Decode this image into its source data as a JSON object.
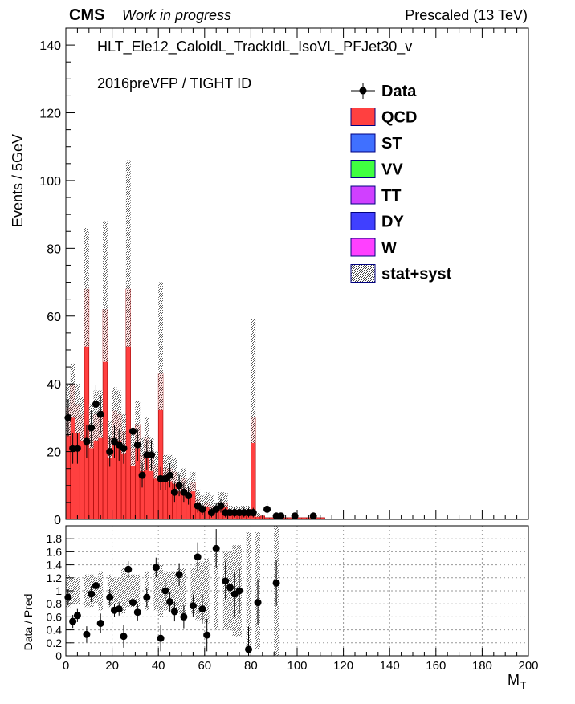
{
  "header": {
    "cms": "CMS",
    "wip": "Work in progress",
    "energy": "Prescaled (13 TeV)"
  },
  "labels": {
    "trigger": "HLT_Ele12_CaloIdL_TrackIdL_IsoVL_PFJet30_v",
    "era": "2016preVFP / TIGHT ID"
  },
  "colors": {
    "qcd": "#ff4040",
    "st": "#4070ff",
    "vv": "#40ff40",
    "tt": "#d040ff",
    "dy": "#4040ff",
    "w": "#ff40ff",
    "data": "#000000",
    "band": "#888888"
  },
  "chart_data": [
    {
      "type": "bar",
      "title": "",
      "xlabel": "",
      "ylabel": "Events / 5GeV",
      "xlim": [
        0,
        200
      ],
      "ylim": [
        0,
        145
      ],
      "xticks": [
        0,
        20,
        40,
        60,
        80,
        100,
        120,
        140,
        160,
        180,
        200
      ],
      "yticks": [
        0,
        20,
        40,
        60,
        80,
        100,
        120,
        140
      ],
      "bin_width": 2,
      "legend": [
        {
          "key": "data",
          "label": "Data"
        },
        {
          "key": "qcd",
          "label": "QCD"
        },
        {
          "key": "st",
          "label": "ST"
        },
        {
          "key": "vv",
          "label": "VV"
        },
        {
          "key": "tt",
          "label": "TT"
        },
        {
          "key": "dy",
          "label": "DY"
        },
        {
          "key": "w",
          "label": "W"
        },
        {
          "key": "band",
          "label": "stat+syst"
        }
      ],
      "mc_qcd": [
        {
          "x": 0,
          "v": 33
        },
        {
          "x": 2,
          "v": 40
        },
        {
          "x": 4,
          "v": 34
        },
        {
          "x": 6,
          "v": 31
        },
        {
          "x": 8,
          "v": 68
        },
        {
          "x": 10,
          "v": 28
        },
        {
          "x": 12,
          "v": 31
        },
        {
          "x": 14,
          "v": 32
        },
        {
          "x": 16,
          "v": 62
        },
        {
          "x": 18,
          "v": 24
        },
        {
          "x": 20,
          "v": 32
        },
        {
          "x": 22,
          "v": 31
        },
        {
          "x": 24,
          "v": 26
        },
        {
          "x": 26,
          "v": 68
        },
        {
          "x": 28,
          "v": 21
        },
        {
          "x": 30,
          "v": 28
        },
        {
          "x": 32,
          "v": 19
        },
        {
          "x": 34,
          "v": 24
        },
        {
          "x": 36,
          "v": 19
        },
        {
          "x": 38,
          "v": 16
        },
        {
          "x": 40,
          "v": 43
        },
        {
          "x": 42,
          "v": 15
        },
        {
          "x": 44,
          "v": 15
        },
        {
          "x": 46,
          "v": 14
        },
        {
          "x": 48,
          "v": 11
        },
        {
          "x": 50,
          "v": 12
        },
        {
          "x": 52,
          "v": 9
        },
        {
          "x": 54,
          "v": 11
        },
        {
          "x": 56,
          "v": 6
        },
        {
          "x": 58,
          "v": 4
        },
        {
          "x": 60,
          "v": 5
        },
        {
          "x": 62,
          "v": 4
        },
        {
          "x": 64,
          "v": 3
        },
        {
          "x": 66,
          "v": 5
        },
        {
          "x": 68,
          "v": 5
        },
        {
          "x": 70,
          "v": 2
        },
        {
          "x": 72,
          "v": 2
        },
        {
          "x": 74,
          "v": 2
        },
        {
          "x": 76,
          "v": 2
        },
        {
          "x": 78,
          "v": 2
        },
        {
          "x": 80,
          "v": 30
        },
        {
          "x": 82,
          "v": 1
        },
        {
          "x": 84,
          "v": 1
        },
        {
          "x": 86,
          "v": 0.5
        },
        {
          "x": 88,
          "v": 0.5
        },
        {
          "x": 90,
          "v": 0.5
        },
        {
          "x": 92,
          "v": 0.5
        },
        {
          "x": 94,
          "v": 0.5
        },
        {
          "x": 96,
          "v": 0.5
        },
        {
          "x": 98,
          "v": 0.5
        },
        {
          "x": 100,
          "v": 0.5
        },
        {
          "x": 102,
          "v": 0.5
        },
        {
          "x": 104,
          "v": 0.5
        },
        {
          "x": 106,
          "v": 0.5
        },
        {
          "x": 108,
          "v": 0.5
        },
        {
          "x": 110,
          "v": 0.5
        }
      ],
      "band_top": [
        {
          "x": 0,
          "v": 40
        },
        {
          "x": 2,
          "v": 46
        },
        {
          "x": 4,
          "v": 40
        },
        {
          "x": 6,
          "v": 36
        },
        {
          "x": 8,
          "v": 86
        },
        {
          "x": 10,
          "v": 34
        },
        {
          "x": 12,
          "v": 38
        },
        {
          "x": 14,
          "v": 38
        },
        {
          "x": 16,
          "v": 88
        },
        {
          "x": 18,
          "v": 29
        },
        {
          "x": 20,
          "v": 39
        },
        {
          "x": 22,
          "v": 38
        },
        {
          "x": 24,
          "v": 31
        },
        {
          "x": 26,
          "v": 106
        },
        {
          "x": 28,
          "v": 25
        },
        {
          "x": 30,
          "v": 35
        },
        {
          "x": 32,
          "v": 24
        },
        {
          "x": 34,
          "v": 30
        },
        {
          "x": 36,
          "v": 24
        },
        {
          "x": 38,
          "v": 20
        },
        {
          "x": 40,
          "v": 70
        },
        {
          "x": 42,
          "v": 19
        },
        {
          "x": 44,
          "v": 19
        },
        {
          "x": 46,
          "v": 18
        },
        {
          "x": 48,
          "v": 14
        },
        {
          "x": 50,
          "v": 15
        },
        {
          "x": 52,
          "v": 12
        },
        {
          "x": 54,
          "v": 14
        },
        {
          "x": 56,
          "v": 9
        },
        {
          "x": 58,
          "v": 7
        },
        {
          "x": 60,
          "v": 8
        },
        {
          "x": 62,
          "v": 7
        },
        {
          "x": 64,
          "v": 5
        },
        {
          "x": 66,
          "v": 8
        },
        {
          "x": 68,
          "v": 8
        },
        {
          "x": 70,
          "v": 4
        },
        {
          "x": 72,
          "v": 4
        },
        {
          "x": 74,
          "v": 4
        },
        {
          "x": 76,
          "v": 4
        },
        {
          "x": 78,
          "v": 4
        },
        {
          "x": 80,
          "v": 59
        },
        {
          "x": 82,
          "v": 2
        }
      ],
      "data_points": [
        {
          "x": 1,
          "y": 30
        },
        {
          "x": 3,
          "y": 21
        },
        {
          "x": 5,
          "y": 21
        },
        {
          "x": 9,
          "y": 23
        },
        {
          "x": 11,
          "y": 27
        },
        {
          "x": 13,
          "y": 34
        },
        {
          "x": 15,
          "y": 31
        },
        {
          "x": 19,
          "y": 20
        },
        {
          "x": 21,
          "y": 23
        },
        {
          "x": 23,
          "y": 22
        },
        {
          "x": 25,
          "y": 21
        },
        {
          "x": 29,
          "y": 26
        },
        {
          "x": 31,
          "y": 22
        },
        {
          "x": 33,
          "y": 13
        },
        {
          "x": 35,
          "y": 19
        },
        {
          "x": 37,
          "y": 19
        },
        {
          "x": 41,
          "y": 12
        },
        {
          "x": 43,
          "y": 12
        },
        {
          "x": 45,
          "y": 13
        },
        {
          "x": 47,
          "y": 8
        },
        {
          "x": 49,
          "y": 10
        },
        {
          "x": 51,
          "y": 8
        },
        {
          "x": 53,
          "y": 7
        },
        {
          "x": 57,
          "y": 4
        },
        {
          "x": 59,
          "y": 3
        },
        {
          "x": 63,
          "y": 2
        },
        {
          "x": 65,
          "y": 3
        },
        {
          "x": 67,
          "y": 4
        },
        {
          "x": 69,
          "y": 2
        },
        {
          "x": 71,
          "y": 2
        },
        {
          "x": 73,
          "y": 2
        },
        {
          "x": 75,
          "y": 2
        },
        {
          "x": 77,
          "y": 2
        },
        {
          "x": 79,
          "y": 2
        },
        {
          "x": 81,
          "y": 2
        },
        {
          "x": 87,
          "y": 3
        },
        {
          "x": 91,
          "y": 1
        },
        {
          "x": 93,
          "y": 1
        },
        {
          "x": 99,
          "y": 1
        },
        {
          "x": 107,
          "y": 1
        }
      ]
    },
    {
      "type": "scatter",
      "title": "",
      "xlabel": "M_T",
      "ylabel": "Data / Pred",
      "xlim": [
        0,
        200
      ],
      "ylim": [
        0,
        2
      ],
      "xticks": [
        0,
        20,
        40,
        60,
        80,
        100,
        120,
        140,
        160,
        180,
        200
      ],
      "yticks": [
        0,
        0.2,
        0.4,
        0.6,
        0.8,
        1,
        1.2,
        1.4,
        1.6,
        1.8
      ],
      "grid": true,
      "ratio_points": [
        {
          "x": 1,
          "y": 0.9,
          "band": 0.25
        },
        {
          "x": 3,
          "y": 0.53,
          "band": 0.2
        },
        {
          "x": 5,
          "y": 0.62,
          "band": 0.2
        },
        {
          "x": 9,
          "y": 0.33,
          "band": 0.25
        },
        {
          "x": 11,
          "y": 0.95,
          "band": 0.25
        },
        {
          "x": 13,
          "y": 1.08,
          "band": 0.2
        },
        {
          "x": 15,
          "y": 0.5,
          "band": 0.3
        },
        {
          "x": 19,
          "y": 0.9,
          "band": 0.25
        },
        {
          "x": 21,
          "y": 0.7,
          "band": 0.2
        },
        {
          "x": 23,
          "y": 0.72,
          "band": 0.2
        },
        {
          "x": 25,
          "y": 0.3,
          "band": 0.35
        },
        {
          "x": 27,
          "y": 1.33,
          "band": 0.25
        },
        {
          "x": 29,
          "y": 0.82,
          "band": 0.25
        },
        {
          "x": 31,
          "y": 0.67,
          "band": 0.25
        },
        {
          "x": 35,
          "y": 0.9,
          "band": 0.3
        },
        {
          "x": 39,
          "y": 1.36,
          "band": 0.3
        },
        {
          "x": 41,
          "y": 0.27,
          "band": 0.4
        },
        {
          "x": 43,
          "y": 1.0,
          "band": 0.3
        },
        {
          "x": 45,
          "y": 0.83,
          "band": 0.3
        },
        {
          "x": 47,
          "y": 0.68,
          "band": 0.3
        },
        {
          "x": 49,
          "y": 1.25,
          "band": 0.35
        },
        {
          "x": 51,
          "y": 0.6,
          "band": 0.35
        },
        {
          "x": 55,
          "y": 0.77,
          "band": 0.35
        },
        {
          "x": 57,
          "y": 1.52,
          "band": 0.45
        },
        {
          "x": 59,
          "y": 0.72,
          "band": 0.45
        },
        {
          "x": 61,
          "y": 0.32,
          "band": 0.5
        },
        {
          "x": 65,
          "y": 1.65,
          "band": 0.6
        },
        {
          "x": 69,
          "y": 1.15,
          "band": 0.6
        },
        {
          "x": 71,
          "y": 1.05,
          "band": 0.6
        },
        {
          "x": 73,
          "y": 0.95,
          "band": 0.7
        },
        {
          "x": 75,
          "y": 1.0,
          "band": 0.7
        },
        {
          "x": 79,
          "y": 0.1,
          "band": 0.9
        },
        {
          "x": 83,
          "y": 0.82,
          "band": 0.9
        },
        {
          "x": 91,
          "y": 1.12,
          "band": 1.0
        }
      ]
    }
  ]
}
